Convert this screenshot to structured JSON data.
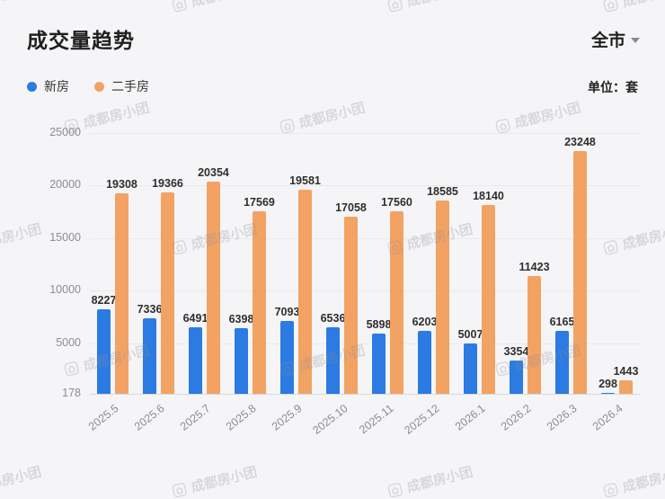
{
  "header": {
    "title": "成交量趋势",
    "region_selector": "全市",
    "unit_label": "单位：套"
  },
  "legend": [
    {
      "label": "新房",
      "color": "#2B7BE2"
    },
    {
      "label": "二手房",
      "color": "#F2A263"
    }
  ],
  "watermark_text": "成都房小团",
  "chart_data": {
    "type": "bar",
    "title": "成交量趋势",
    "unit": "套",
    "legend_position": "top-left",
    "grid": true,
    "categories": [
      "2025.5",
      "2025.6",
      "2025.7",
      "2025.8",
      "2025.9",
      "2025.10",
      "2025.11",
      "2025.12",
      "2026.1",
      "2026.2",
      "2026.3",
      "2026.4"
    ],
    "series": [
      {
        "name": "新房",
        "color": "#2B7BE2",
        "values": [
          8227,
          7336,
          6491,
          6398,
          7093,
          6536,
          5898,
          6203,
          5007,
          3354,
          6165,
          298
        ]
      },
      {
        "name": "二手房",
        "color": "#F2A263",
        "values": [
          19308,
          19366,
          20354,
          17569,
          19581,
          17058,
          17560,
          18585,
          18140,
          11423,
          23248,
          1443
        ]
      }
    ],
    "yticks": [
      25000,
      20000,
      15000,
      10000,
      5000,
      178
    ],
    "ylim": [
      178,
      25000
    ]
  }
}
